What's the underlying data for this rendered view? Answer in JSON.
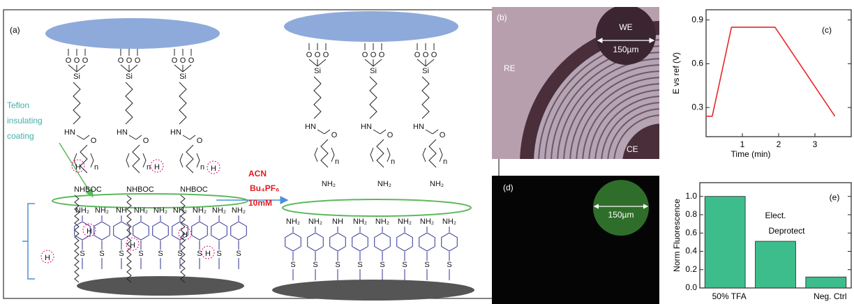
{
  "panel_a": {
    "label": "(a)",
    "coating_label": [
      "Teflon",
      "insulating",
      "coating"
    ],
    "reagents": [
      "ACN",
      "Bu₄PF₆",
      "10mM"
    ],
    "chem": {
      "oxygen": "O",
      "silicon": "Si",
      "amide": "HN",
      "repeat": "n",
      "boc": "NHBOC",
      "amine": "NH₂",
      "imine": "NH",
      "sulfur": "S",
      "proton": "H"
    }
  },
  "panel_b": {
    "label": "(b)",
    "electrodes": [
      "WE",
      "RE",
      "CE"
    ],
    "scale": "150µm"
  },
  "panel_d": {
    "label": "(d)",
    "scale": "150µm"
  },
  "chart_data": [
    {
      "type": "line",
      "label": "(c)",
      "x_label": "Time (min)",
      "y_label": "E vs ref (V)",
      "x": [
        0,
        0.17,
        0.7,
        1.9,
        3.55
      ],
      "values": [
        0.24,
        0.24,
        0.85,
        0.85,
        0.24
      ],
      "color": "#e8262a",
      "xlim": [
        0,
        4
      ],
      "xticks": [
        1,
        2,
        3
      ],
      "ylim": [
        0.1,
        0.97
      ],
      "yticks": [
        0.3,
        0.6,
        0.9
      ]
    },
    {
      "type": "bar",
      "label": "(e)",
      "y_label": "Norm Fluorescence",
      "categories": [
        "50% TFA",
        null,
        "Neg. Ctrl"
      ],
      "annotation": [
        "Elect.",
        "Deprotect"
      ],
      "values": [
        1.0,
        0.51,
        0.12
      ],
      "color": "#3dbd8c",
      "ylim": [
        0,
        1.15
      ],
      "yticks": [
        {
          "value": 0,
          "label": "0.0"
        },
        0.2,
        0.4,
        0.6,
        0.8,
        {
          "value": 1,
          "label": "1.0"
        }
      ]
    }
  ]
}
